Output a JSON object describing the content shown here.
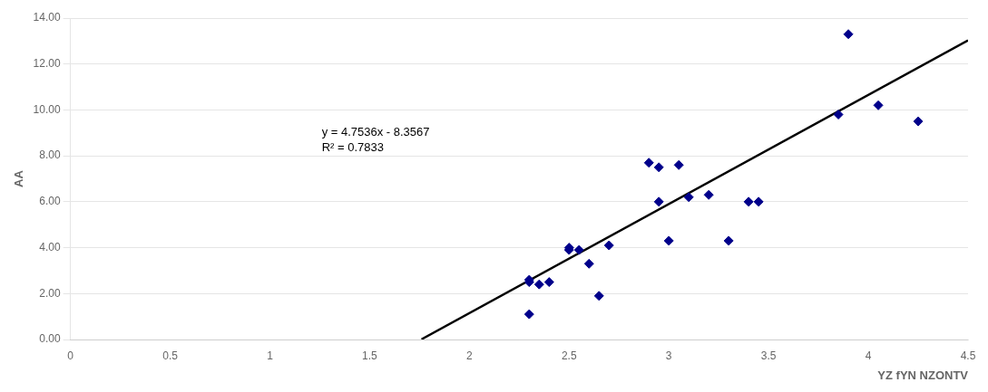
{
  "chart_data": {
    "type": "scatter",
    "xlabel": "YZ fYN NZONTV",
    "ylabel": "AA",
    "annotation": [
      "y = 4.7536x - 8.3567",
      "R² = 0.7833"
    ],
    "series": [
      {
        "type": "scatter",
        "color": "#00008B",
        "marker": "diamond",
        "x": [
          2.3,
          2.3,
          2.3,
          2.35,
          2.4,
          2.5,
          2.5,
          2.55,
          2.6,
          2.65,
          2.7,
          2.9,
          2.95,
          2.95,
          3.0,
          3.05,
          3.1,
          3.2,
          3.3,
          3.4,
          3.45,
          3.85,
          3.9,
          4.05,
          4.25
        ],
        "values": [
          1.1,
          2.5,
          2.6,
          2.4,
          2.5,
          3.9,
          4.0,
          3.9,
          3.3,
          1.9,
          4.1,
          7.7,
          7.5,
          6.0,
          4.3,
          7.6,
          6.2,
          6.3,
          4.3,
          6.0,
          6.0,
          9.8,
          13.3,
          10.2,
          9.5
        ]
      },
      {
        "type": "line",
        "color": "#000000",
        "line_style": "solid",
        "x": [
          1.76,
          4.5
        ],
        "values": [
          0.009636,
          13.0345
        ]
      }
    ],
    "xlim": [
      0,
      4.5
    ],
    "ylim": [
      0,
      14
    ],
    "xticks": [
      0,
      0.5,
      1.0,
      1.5,
      2.0,
      2.5,
      3.0,
      3.5,
      4.0,
      4.5
    ],
    "yticks": [
      {
        "value": 0,
        "label": "0.00"
      },
      {
        "value": 2,
        "label": "2.00"
      },
      {
        "value": 4,
        "label": "4.00"
      },
      {
        "value": 6,
        "label": "6.00"
      },
      {
        "value": 8,
        "label": "8.00"
      },
      {
        "value": 10,
        "label": "10.00"
      },
      {
        "value": 12,
        "label": "12.00"
      },
      {
        "value": 14,
        "label": "14.00"
      }
    ],
    "grid": "y"
  }
}
